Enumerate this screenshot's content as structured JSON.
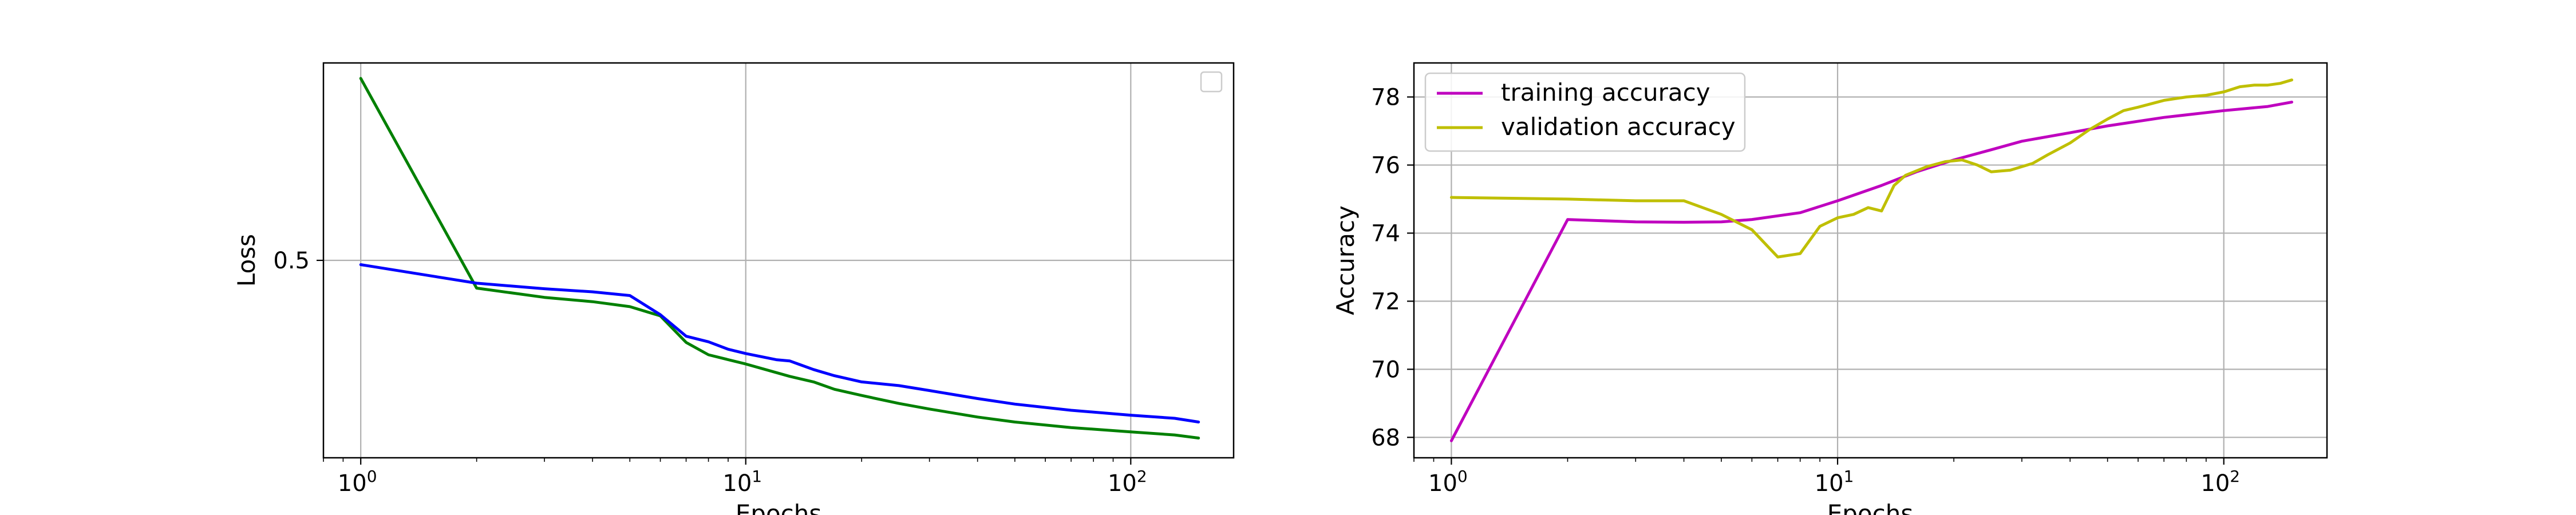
{
  "chart_data": [
    {
      "type": "line",
      "xscale": "log",
      "xlabel": "Epochs",
      "ylabel": "Loss",
      "xlim": [
        0.8,
        185
      ],
      "ylim": [
        0.18,
        0.82
      ],
      "xticks": [
        {
          "value": 1,
          "base": "10",
          "exp": "0"
        },
        {
          "value": 10,
          "base": "10",
          "exp": "1"
        },
        {
          "value": 100,
          "base": "10",
          "exp": "2"
        }
      ],
      "yticks": [
        {
          "value": 0.5,
          "label": "0.5"
        }
      ],
      "grid": true,
      "legend_position": "top-right",
      "series": [
        {
          "color": "#008000",
          "points": [
            [
              1,
              0.795
            ],
            [
              2,
              0.455
            ],
            [
              3,
              0.44
            ],
            [
              4,
              0.433
            ],
            [
              5,
              0.425
            ],
            [
              6,
              0.41
            ],
            [
              7,
              0.367
            ],
            [
              8,
              0.347
            ],
            [
              10,
              0.332
            ],
            [
              13,
              0.312
            ],
            [
              15,
              0.303
            ],
            [
              17,
              0.291
            ],
            [
              20,
              0.281
            ],
            [
              25,
              0.268
            ],
            [
              30,
              0.259
            ],
            [
              40,
              0.246
            ],
            [
              50,
              0.238
            ],
            [
              70,
              0.229
            ],
            [
              100,
              0.222
            ],
            [
              130,
              0.217
            ],
            [
              150,
              0.212
            ]
          ]
        },
        {
          "color": "#0000ff",
          "points": [
            [
              1,
              0.493
            ],
            [
              2,
              0.463
            ],
            [
              3,
              0.454
            ],
            [
              4,
              0.449
            ],
            [
              5,
              0.443
            ],
            [
              6,
              0.412
            ],
            [
              7,
              0.377
            ],
            [
              8,
              0.368
            ],
            [
              9,
              0.356
            ],
            [
              10,
              0.349
            ],
            [
              12,
              0.339
            ],
            [
              13,
              0.337
            ],
            [
              15,
              0.323
            ],
            [
              17,
              0.313
            ],
            [
              20,
              0.303
            ],
            [
              25,
              0.297
            ],
            [
              30,
              0.289
            ],
            [
              40,
              0.276
            ],
            [
              50,
              0.267
            ],
            [
              70,
              0.257
            ],
            [
              100,
              0.249
            ],
            [
              130,
              0.244
            ],
            [
              150,
              0.238
            ]
          ]
        }
      ]
    },
    {
      "type": "line",
      "xscale": "log",
      "xlabel": "Epochs",
      "ylabel": "Accuracy",
      "xlim": [
        0.8,
        185
      ],
      "ylim": [
        67.4,
        79.0
      ],
      "xticks": [
        {
          "value": 1,
          "base": "10",
          "exp": "0"
        },
        {
          "value": 10,
          "base": "10",
          "exp": "1"
        },
        {
          "value": 100,
          "base": "10",
          "exp": "2"
        }
      ],
      "yticks": [
        {
          "value": 68,
          "label": "68"
        },
        {
          "value": 70,
          "label": "70"
        },
        {
          "value": 72,
          "label": "72"
        },
        {
          "value": 74,
          "label": "74"
        },
        {
          "value": 76,
          "label": "76"
        },
        {
          "value": 78,
          "label": "78"
        }
      ],
      "grid": true,
      "legend_position": "top-left",
      "series": [
        {
          "name": "training accuracy",
          "color": "#bf00bf",
          "points": [
            [
              1,
              67.9
            ],
            [
              2,
              74.4
            ],
            [
              3,
              74.33
            ],
            [
              4,
              74.32
            ],
            [
              5,
              74.33
            ],
            [
              6,
              74.4
            ],
            [
              8,
              74.6
            ],
            [
              10,
              74.95
            ],
            [
              13,
              75.4
            ],
            [
              16,
              75.8
            ],
            [
              20,
              76.15
            ],
            [
              25,
              76.45
            ],
            [
              30,
              76.7
            ],
            [
              40,
              76.95
            ],
            [
              50,
              77.15
            ],
            [
              70,
              77.4
            ],
            [
              100,
              77.6
            ],
            [
              130,
              77.72
            ],
            [
              150,
              77.85
            ]
          ]
        },
        {
          "name": "validation accuracy",
          "color": "#bfbf00",
          "points": [
            [
              1,
              75.05
            ],
            [
              2,
              75.0
            ],
            [
              3,
              74.95
            ],
            [
              4,
              74.95
            ],
            [
              5,
              74.55
            ],
            [
              6,
              74.1
            ],
            [
              7,
              73.3
            ],
            [
              8,
              73.4
            ],
            [
              9,
              74.2
            ],
            [
              10,
              74.45
            ],
            [
              11,
              74.55
            ],
            [
              12,
              74.75
            ],
            [
              13,
              74.65
            ],
            [
              14,
              75.4
            ],
            [
              15,
              75.7
            ],
            [
              17,
              75.95
            ],
            [
              19,
              76.1
            ],
            [
              21,
              76.15
            ],
            [
              23,
              76.0
            ],
            [
              25,
              75.8
            ],
            [
              28,
              75.85
            ],
            [
              32,
              76.05
            ],
            [
              35,
              76.3
            ],
            [
              40,
              76.65
            ],
            [
              45,
              77.05
            ],
            [
              50,
              77.35
            ],
            [
              55,
              77.6
            ],
            [
              60,
              77.7
            ],
            [
              70,
              77.9
            ],
            [
              80,
              78.0
            ],
            [
              90,
              78.05
            ],
            [
              100,
              78.15
            ],
            [
              110,
              78.3
            ],
            [
              120,
              78.35
            ],
            [
              130,
              78.35
            ],
            [
              140,
              78.4
            ],
            [
              150,
              78.5
            ]
          ]
        }
      ]
    }
  ]
}
